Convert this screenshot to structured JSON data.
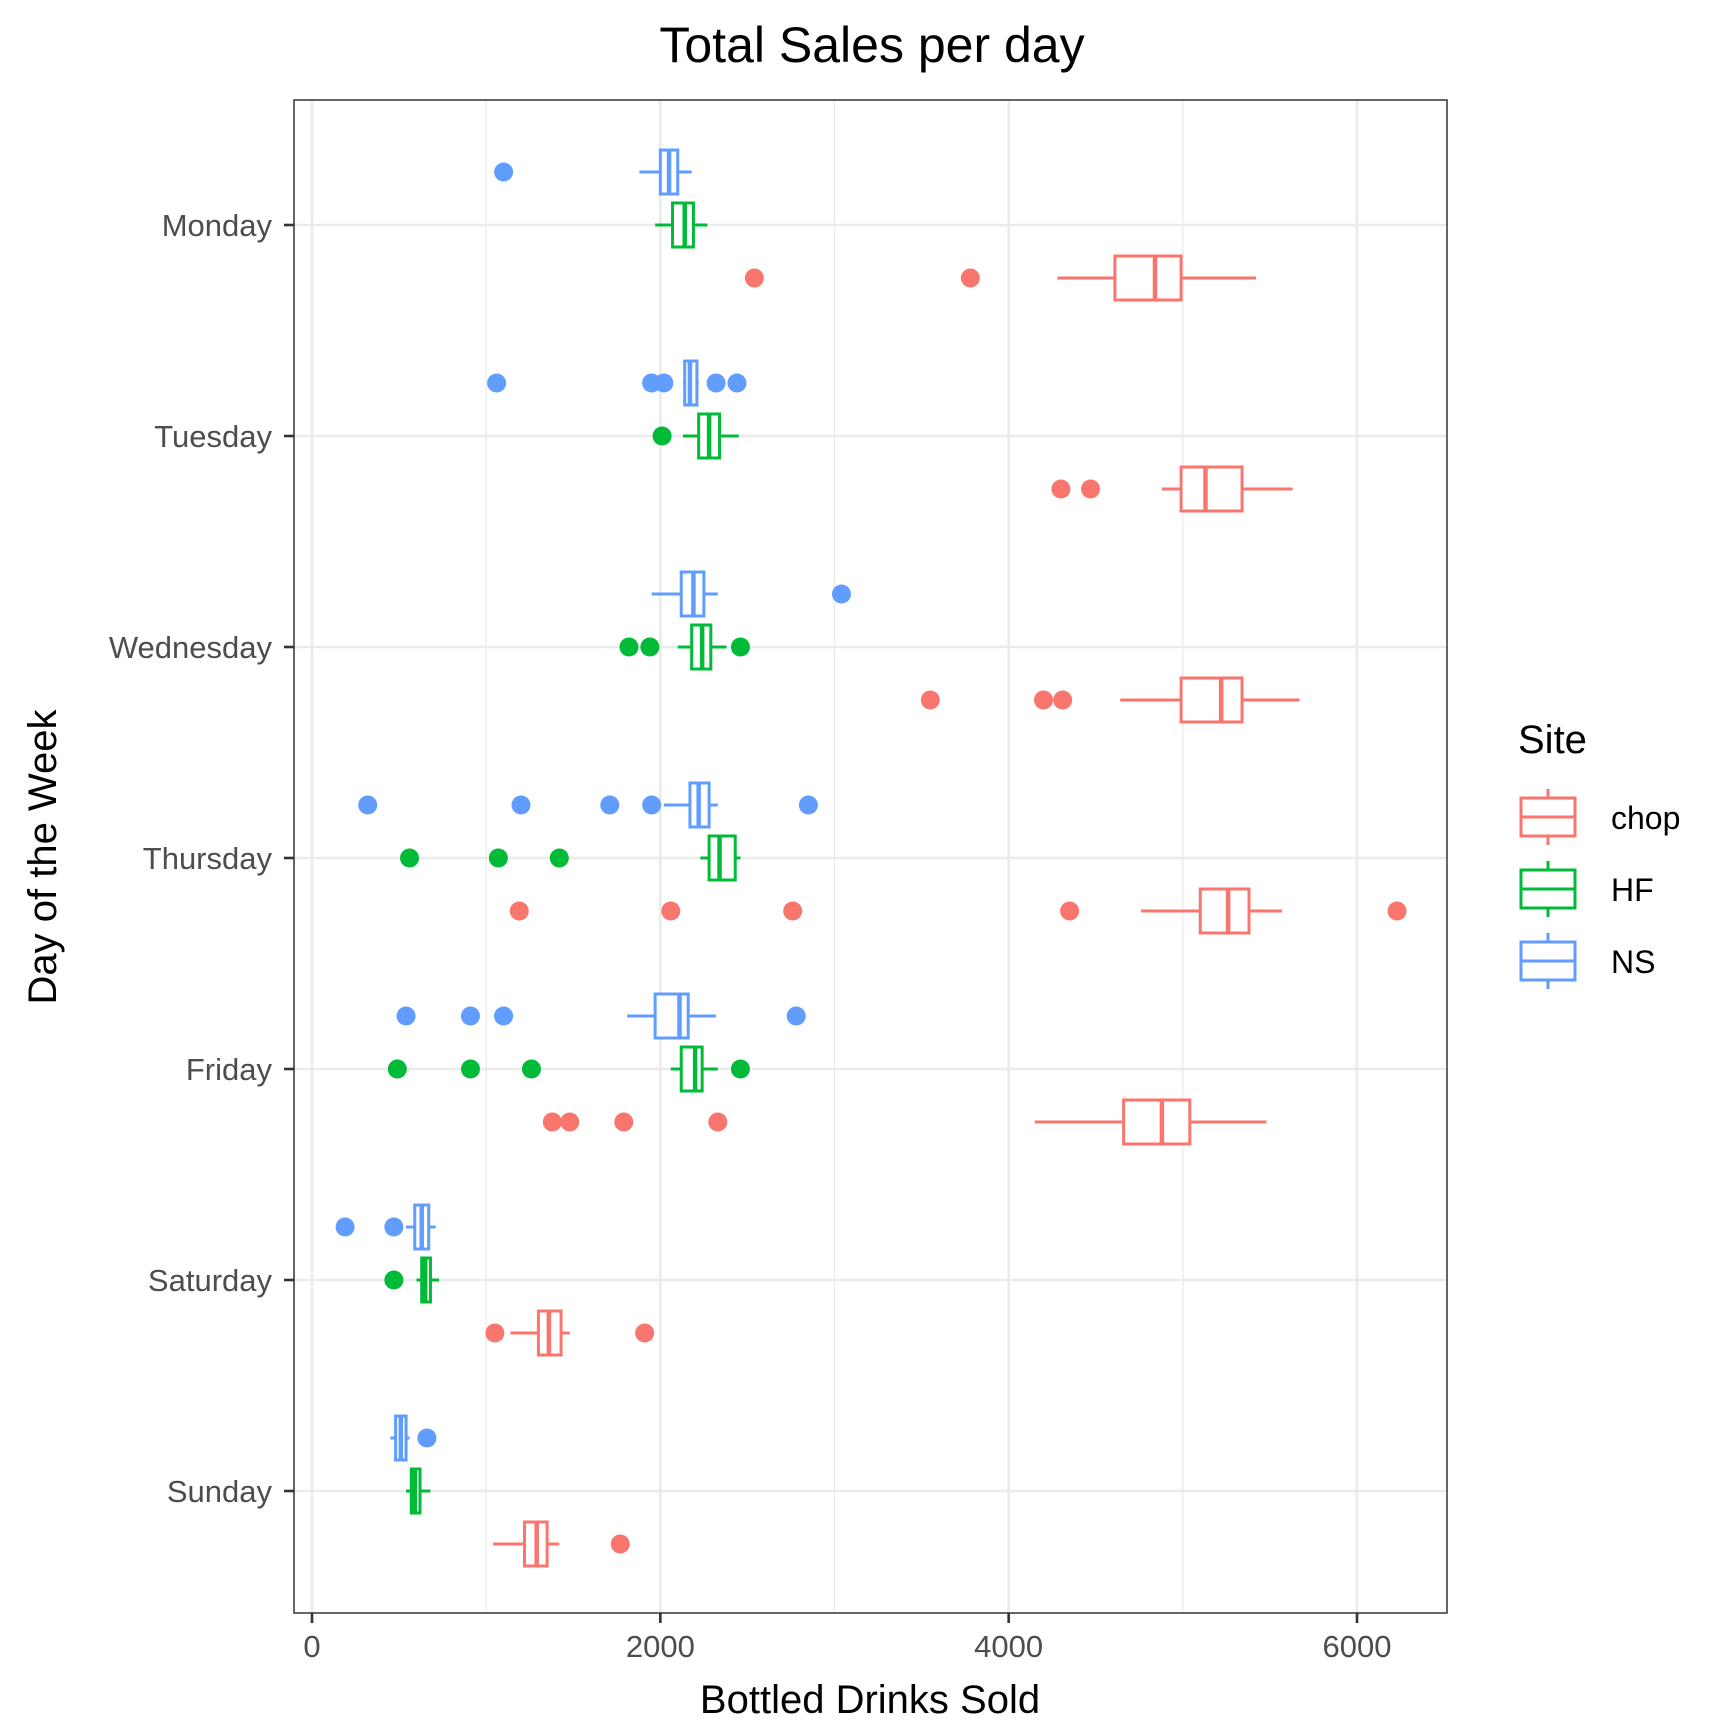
{
  "chart_data": {
    "type": "boxplot",
    "orientation": "horizontal",
    "title": "Total Sales per day",
    "xlabel": "Bottled Drinks Sold",
    "ylabel": "Day of the Week",
    "xlim": [
      -100,
      6500
    ],
    "x_ticks": [
      0,
      2000,
      4000,
      6000
    ],
    "x_tick_labels": [
      "0",
      "2000",
      "4000",
      "6000"
    ],
    "categories": [
      "Monday",
      "Tuesday",
      "Wednesday",
      "Thursday",
      "Friday",
      "Saturday",
      "Sunday"
    ],
    "grid": true,
    "legend": {
      "title": "Site",
      "position": "right"
    },
    "series": [
      {
        "name": "chop",
        "color": "#F8766D",
        "boxes": [
          {
            "category": "Monday",
            "whisker_low": 4280,
            "q1": 4610,
            "median": 4840,
            "q3": 4990,
            "whisker_high": 5420,
            "outliers": [
              2540,
              3780
            ]
          },
          {
            "category": "Tuesday",
            "whisker_low": 4880,
            "q1": 4990,
            "median": 5130,
            "q3": 5340,
            "whisker_high": 5630,
            "outliers": [
              4300,
              4470
            ]
          },
          {
            "category": "Wednesday",
            "whisker_low": 4640,
            "q1": 4990,
            "median": 5220,
            "q3": 5340,
            "whisker_high": 5670,
            "outliers": [
              3550,
              4200,
              4310
            ]
          },
          {
            "category": "Thursday",
            "whisker_low": 4760,
            "q1": 5100,
            "median": 5260,
            "q3": 5380,
            "whisker_high": 5570,
            "outliers": [
              1190,
              2060,
              2760,
              4350,
              6230
            ]
          },
          {
            "category": "Friday",
            "whisker_low": 4150,
            "q1": 4660,
            "median": 4880,
            "q3": 5040,
            "whisker_high": 5480,
            "outliers": [
              1380,
              1480,
              1790,
              2330
            ]
          },
          {
            "category": "Saturday",
            "whisker_low": 1140,
            "q1": 1300,
            "median": 1360,
            "q3": 1430,
            "whisker_high": 1480,
            "outliers": [
              1050,
              1910
            ]
          },
          {
            "category": "Sunday",
            "whisker_low": 1040,
            "q1": 1220,
            "median": 1290,
            "q3": 1350,
            "whisker_high": 1420,
            "outliers": [
              1770
            ]
          }
        ]
      },
      {
        "name": "HF",
        "color": "#00BA38",
        "boxes": [
          {
            "category": "Monday",
            "whisker_low": 1970,
            "q1": 2070,
            "median": 2140,
            "q3": 2190,
            "whisker_high": 2270,
            "outliers": []
          },
          {
            "category": "Tuesday",
            "whisker_low": 2130,
            "q1": 2220,
            "median": 2280,
            "q3": 2340,
            "whisker_high": 2450,
            "outliers": [
              2010
            ]
          },
          {
            "category": "Wednesday",
            "whisker_low": 2100,
            "q1": 2180,
            "median": 2240,
            "q3": 2290,
            "whisker_high": 2380,
            "outliers": [
              1820,
              1940,
              2460
            ]
          },
          {
            "category": "Thursday",
            "whisker_low": 2230,
            "q1": 2280,
            "median": 2340,
            "q3": 2430,
            "whisker_high": 2460,
            "outliers": [
              560,
              1070,
              1420
            ]
          },
          {
            "category": "Friday",
            "whisker_low": 2060,
            "q1": 2120,
            "median": 2200,
            "q3": 2240,
            "whisker_high": 2330,
            "outliers": [
              490,
              910,
              1260,
              2460
            ]
          },
          {
            "category": "Saturday",
            "whisker_low": 600,
            "q1": 630,
            "median": 650,
            "q3": 680,
            "whisker_high": 730,
            "outliers": [
              470
            ]
          },
          {
            "category": "Sunday",
            "whisker_low": 540,
            "q1": 570,
            "median": 590,
            "q3": 620,
            "whisker_high": 680,
            "outliers": []
          }
        ]
      },
      {
        "name": "NS",
        "color": "#619CFF",
        "boxes": [
          {
            "category": "Monday",
            "whisker_low": 1880,
            "q1": 2000,
            "median": 2050,
            "q3": 2100,
            "whisker_high": 2180,
            "outliers": [
              1100
            ]
          },
          {
            "category": "Tuesday",
            "whisker_low": 2130,
            "q1": 2140,
            "median": 2170,
            "q3": 2210,
            "whisker_high": 2220,
            "outliers": [
              1060,
              1950,
              2020,
              2320,
              2440
            ]
          },
          {
            "category": "Wednesday",
            "whisker_low": 1950,
            "q1": 2120,
            "median": 2190,
            "q3": 2250,
            "whisker_high": 2330,
            "outliers": [
              3040
            ]
          },
          {
            "category": "Thursday",
            "whisker_low": 2020,
            "q1": 2170,
            "median": 2220,
            "q3": 2280,
            "whisker_high": 2330,
            "outliers": [
              320,
              1200,
              1710,
              1950,
              2850
            ]
          },
          {
            "category": "Friday",
            "whisker_low": 1810,
            "q1": 1970,
            "median": 2110,
            "q3": 2160,
            "whisker_high": 2320,
            "outliers": [
              540,
              910,
              1100,
              2780
            ]
          },
          {
            "category": "Saturday",
            "whisker_low": 540,
            "q1": 590,
            "median": 630,
            "q3": 670,
            "whisker_high": 710,
            "outliers": [
              190,
              470
            ]
          },
          {
            "category": "Sunday",
            "whisker_low": 450,
            "q1": 480,
            "median": 510,
            "q3": 540,
            "whisker_high": 560,
            "outliers": [
              660
            ]
          }
        ]
      }
    ]
  }
}
